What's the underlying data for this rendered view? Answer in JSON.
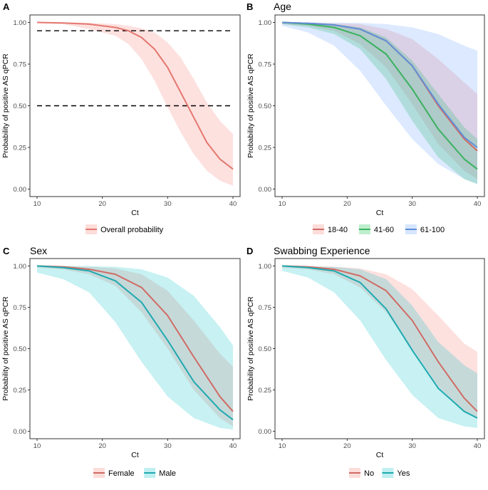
{
  "chart_data": [
    {
      "panel_letter": "A",
      "type": "line",
      "title": "",
      "xlabel": "Ct",
      "ylabel": "Probability of positive AS qPCR",
      "xlim": [
        10,
        40
      ],
      "ylim": [
        0,
        1
      ],
      "xticks": [
        10,
        20,
        30,
        40
      ],
      "xtick_labels": [
        "10",
        "20",
        "30",
        "40"
      ],
      "yticks": [
        0,
        0.25,
        0.5,
        0.75,
        1
      ],
      "ytick_labels": [
        "0.00",
        "0.25",
        "0.50",
        "0.75",
        "1.00"
      ],
      "grid": false,
      "legend_position": "bottom",
      "reference_lines": [
        0.95,
        0.5
      ],
      "series": [
        {
          "name": "Overall probability",
          "color": "#E4776F",
          "fill": "#F8766D",
          "x": [
            10,
            14,
            18,
            22,
            24,
            26,
            28,
            30,
            32,
            34,
            36,
            38,
            40
          ],
          "y": [
            1.0,
            0.997,
            0.99,
            0.97,
            0.95,
            0.91,
            0.84,
            0.73,
            0.58,
            0.43,
            0.28,
            0.18,
            0.12
          ],
          "lower": [
            0.996,
            0.99,
            0.96,
            0.92,
            0.87,
            0.78,
            0.65,
            0.49,
            0.34,
            0.21,
            0.11,
            0.05,
            0.02
          ],
          "upper": [
            1.0,
            1.0,
            0.998,
            0.99,
            0.98,
            0.965,
            0.94,
            0.88,
            0.79,
            0.66,
            0.52,
            0.41,
            0.33
          ]
        }
      ]
    },
    {
      "panel_letter": "B",
      "type": "line",
      "title": "Age",
      "xlabel": "Ct",
      "ylabel": "Probability of positive AS qPCR",
      "xlim": [
        10,
        40
      ],
      "ylim": [
        0,
        1
      ],
      "xticks": [
        10,
        20,
        30,
        40
      ],
      "xtick_labels": [
        "10",
        "20",
        "30",
        "40"
      ],
      "yticks": [
        0,
        0.25,
        0.5,
        0.75,
        1
      ],
      "ytick_labels": [
        "0.00",
        "0.25",
        "0.50",
        "0.75",
        "1.00"
      ],
      "grid": false,
      "legend_position": "bottom",
      "series": [
        {
          "name": "18-40",
          "color": "#D06B64",
          "fill": "#F8766D",
          "x": [
            10,
            14,
            18,
            22,
            26,
            30,
            34,
            38,
            40
          ],
          "y": [
            1.0,
            0.995,
            0.985,
            0.96,
            0.89,
            0.74,
            0.5,
            0.3,
            0.23
          ],
          "lower": [
            0.99,
            0.98,
            0.95,
            0.87,
            0.73,
            0.51,
            0.27,
            0.11,
            0.06
          ],
          "upper": [
            1.0,
            0.999,
            0.995,
            0.99,
            0.96,
            0.9,
            0.78,
            0.64,
            0.57
          ]
        },
        {
          "name": "41-60",
          "color": "#3BB25F",
          "fill": "#00BA38",
          "x": [
            10,
            14,
            18,
            22,
            26,
            30,
            34,
            38,
            40
          ],
          "y": [
            1.0,
            0.99,
            0.97,
            0.92,
            0.81,
            0.6,
            0.36,
            0.18,
            0.12
          ],
          "lower": [
            0.99,
            0.97,
            0.93,
            0.84,
            0.66,
            0.41,
            0.19,
            0.06,
            0.03
          ],
          "upper": [
            1.0,
            0.998,
            0.99,
            0.97,
            0.91,
            0.77,
            0.57,
            0.37,
            0.3
          ]
        },
        {
          "name": "61-100",
          "color": "#5F8FD8",
          "fill": "#619CFF",
          "x": [
            10,
            14,
            18,
            22,
            26,
            30,
            34,
            38,
            40
          ],
          "y": [
            1.0,
            0.995,
            0.985,
            0.96,
            0.89,
            0.74,
            0.51,
            0.31,
            0.25
          ],
          "lower": [
            0.98,
            0.94,
            0.86,
            0.71,
            0.5,
            0.3,
            0.15,
            0.06,
            0.03
          ],
          "upper": [
            1.0,
            1.0,
            0.999,
            0.997,
            0.99,
            0.97,
            0.93,
            0.86,
            0.83
          ]
        }
      ]
    },
    {
      "panel_letter": "C",
      "type": "line",
      "title": "Sex",
      "xlabel": "Ct",
      "ylabel": "Probability of positive AS qPCR",
      "xlim": [
        10,
        40
      ],
      "ylim": [
        0,
        1
      ],
      "xticks": [
        10,
        20,
        30,
        40
      ],
      "xtick_labels": [
        "10",
        "20",
        "30",
        "40"
      ],
      "yticks": [
        0,
        0.25,
        0.5,
        0.75,
        1
      ],
      "ytick_labels": [
        "0.00",
        "0.25",
        "0.50",
        "0.75",
        "1.00"
      ],
      "grid": false,
      "legend_position": "bottom",
      "series": [
        {
          "name": "Female",
          "color": "#D06B64",
          "fill": "#F8766D",
          "x": [
            10,
            14,
            18,
            22,
            26,
            30,
            34,
            38,
            40
          ],
          "y": [
            1.0,
            0.995,
            0.98,
            0.95,
            0.87,
            0.7,
            0.45,
            0.21,
            0.12
          ],
          "lower": [
            0.99,
            0.98,
            0.95,
            0.88,
            0.72,
            0.5,
            0.25,
            0.08,
            0.03
          ],
          "upper": [
            1.0,
            0.999,
            0.995,
            0.985,
            0.95,
            0.85,
            0.67,
            0.47,
            0.39
          ]
        },
        {
          "name": "Male",
          "color": "#1FA9B0",
          "fill": "#00BFC4",
          "x": [
            10,
            14,
            18,
            22,
            26,
            30,
            34,
            38,
            40
          ],
          "y": [
            1.0,
            0.99,
            0.97,
            0.91,
            0.78,
            0.55,
            0.3,
            0.13,
            0.07
          ],
          "lower": [
            0.96,
            0.92,
            0.84,
            0.66,
            0.42,
            0.21,
            0.08,
            0.02,
            0.01
          ],
          "upper": [
            1.0,
            1.0,
            0.999,
            0.995,
            0.98,
            0.93,
            0.82,
            0.63,
            0.52
          ]
        }
      ]
    },
    {
      "panel_letter": "D",
      "type": "line",
      "title": "Swabbing Experience",
      "xlabel": "Ct",
      "ylabel": "Probability of positive AS qPCR",
      "xlim": [
        10,
        40
      ],
      "ylim": [
        0,
        1
      ],
      "xticks": [
        10,
        20,
        30,
        40
      ],
      "xtick_labels": [
        "10",
        "20",
        "30",
        "40"
      ],
      "yticks": [
        0,
        0.25,
        0.5,
        0.75,
        1
      ],
      "ytick_labels": [
        "0.00",
        "0.25",
        "0.50",
        "0.75",
        "1.00"
      ],
      "grid": false,
      "legend_position": "bottom",
      "series": [
        {
          "name": "No",
          "color": "#D06B64",
          "fill": "#F8766D",
          "x": [
            10,
            14,
            18,
            22,
            26,
            30,
            34,
            38,
            40
          ],
          "y": [
            1.0,
            0.995,
            0.98,
            0.94,
            0.85,
            0.67,
            0.42,
            0.2,
            0.12
          ],
          "lower": [
            0.99,
            0.98,
            0.95,
            0.87,
            0.72,
            0.5,
            0.27,
            0.12,
            0.08
          ],
          "upper": [
            1.0,
            0.999,
            0.996,
            0.985,
            0.95,
            0.86,
            0.7,
            0.53,
            0.48
          ]
        },
        {
          "name": "Yes",
          "color": "#1FA9B0",
          "fill": "#00BFC4",
          "x": [
            10,
            14,
            18,
            22,
            26,
            30,
            34,
            38,
            40
          ],
          "y": [
            1.0,
            0.99,
            0.97,
            0.9,
            0.74,
            0.49,
            0.26,
            0.12,
            0.08
          ],
          "lower": [
            0.97,
            0.93,
            0.84,
            0.67,
            0.43,
            0.22,
            0.08,
            0.03,
            0.02
          ],
          "upper": [
            1.0,
            0.998,
            0.994,
            0.98,
            0.92,
            0.76,
            0.54,
            0.4,
            0.35
          ]
        }
      ]
    }
  ]
}
